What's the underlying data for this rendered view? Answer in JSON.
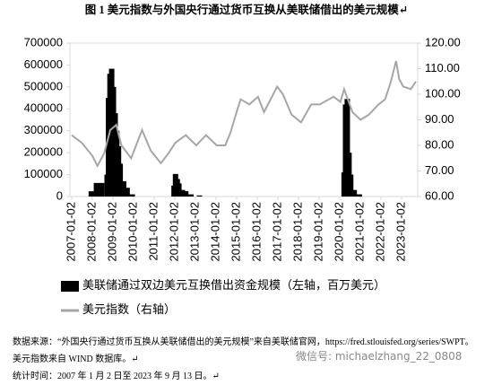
{
  "chart_data": {
    "type": "bar-line",
    "title": "图 1  美元指数与外国央行通过货币互换从美联储借出的美元规模↵",
    "xlim": [
      "2007-01-02",
      "2023-09-13"
    ],
    "xticks": [
      "2007-01-02",
      "2008-01-02",
      "2009-01-02",
      "2010-01-02",
      "2011-01-02",
      "2012-01-02",
      "2013-01-02",
      "2014-01-02",
      "2015-01-02",
      "2016-01-02",
      "2017-01-02",
      "2018-01-02",
      "2019-01-02",
      "2020-01-02",
      "2021-01-02",
      "2022-01-02",
      "2023-01-02"
    ],
    "ylim": [
      0,
      700000
    ],
    "yticks": [
      0,
      100000,
      200000,
      300000,
      400000,
      500000,
      600000,
      700000
    ],
    "y2lim": [
      60,
      120
    ],
    "y2ticks": [
      {
        "value": 60,
        "label": "60.00"
      },
      {
        "value": 70,
        "label": "70.00"
      },
      {
        "value": 80,
        "label": "80.00"
      },
      {
        "value": 90,
        "label": "90.00"
      },
      {
        "value": 100,
        "label": "100.00"
      },
      {
        "value": 110,
        "label": "110.00"
      },
      {
        "value": 120,
        "label": "120.00"
      }
    ],
    "series": [
      {
        "name": "美联储通过双边美元互换借出资金规模（左轴，百万美元）",
        "type": "bar",
        "color": "#000000",
        "x": [
          "2007-12-15",
          "2008-03-15",
          "2008-06-15",
          "2008-09-20",
          "2008-10-15",
          "2008-11-10",
          "2008-12-10",
          "2009-01-10",
          "2009-02-10",
          "2009-03-10",
          "2009-04-10",
          "2009-05-10",
          "2009-07-10",
          "2009-09-10",
          "2009-12-10",
          "2011-12-20",
          "2012-01-15",
          "2012-02-15",
          "2012-03-15",
          "2012-05-15",
          "2012-07-15",
          "2012-10-15",
          "2013-03-15",
          "2020-03-20",
          "2020-04-15",
          "2020-05-15",
          "2020-06-15",
          "2020-07-15",
          "2020-09-15",
          "2020-12-15"
        ],
        "values": [
          24000,
          62000,
          62000,
          100000,
          450000,
          560000,
          583000,
          500000,
          380000,
          300000,
          230000,
          150000,
          70000,
          40000,
          10000,
          50000,
          103000,
          80000,
          60000,
          30000,
          25000,
          10000,
          5000,
          110000,
          420000,
          445000,
          200000,
          100000,
          30000,
          10000
        ]
      },
      {
        "name": "美元指数（右轴）",
        "type": "line",
        "axis": "y2",
        "color": "#a6a6a6",
        "x": [
          "2007-01-02",
          "2007-07-01",
          "2008-01-01",
          "2008-04-01",
          "2008-08-01",
          "2008-11-15",
          "2009-03-01",
          "2009-06-01",
          "2009-11-20",
          "2010-06-01",
          "2010-11-01",
          "2011-05-01",
          "2011-09-15",
          "2012-01-10",
          "2012-07-15",
          "2013-01-15",
          "2013-07-10",
          "2014-01-15",
          "2014-06-15",
          "2014-09-15",
          "2015-01-15",
          "2015-03-15",
          "2015-08-15",
          "2016-01-15",
          "2016-05-01",
          "2016-12-20",
          "2017-04-01",
          "2017-09-01",
          "2018-02-15",
          "2018-08-15",
          "2019-01-15",
          "2019-09-15",
          "2020-01-15",
          "2020-03-20",
          "2020-08-15",
          "2021-01-05",
          "2021-06-01",
          "2021-11-20",
          "2022-03-15",
          "2022-06-15",
          "2022-09-27",
          "2022-11-20",
          "2023-02-01",
          "2023-06-15",
          "2023-09-13"
        ],
        "values": [
          84,
          81,
          76,
          72,
          77,
          86,
          88,
          80,
          75,
          86,
          78,
          73,
          77,
          81,
          84,
          80,
          84,
          80,
          80,
          85,
          94,
          98,
          96,
          99,
          93,
          103,
          100,
          92,
          89,
          96,
          96,
          99,
          97,
          102,
          93,
          90,
          92,
          96,
          98,
          104,
          113,
          106,
          103,
          102,
          105
        ]
      }
    ]
  },
  "notes": {
    "source": "数据来源：“外国央行通过货币互换从美联储借出的美元规模”来自美联储官网，https://fred.stlouisfed.org/series/SWPT。美元指数来自 WIND 数据库。↵",
    "period": "统计时间：2007 年 1 月 2 日至 2023 年 9 月 13 日。↵"
  },
  "watermark": "微信号: michaelzhang_22_0808"
}
